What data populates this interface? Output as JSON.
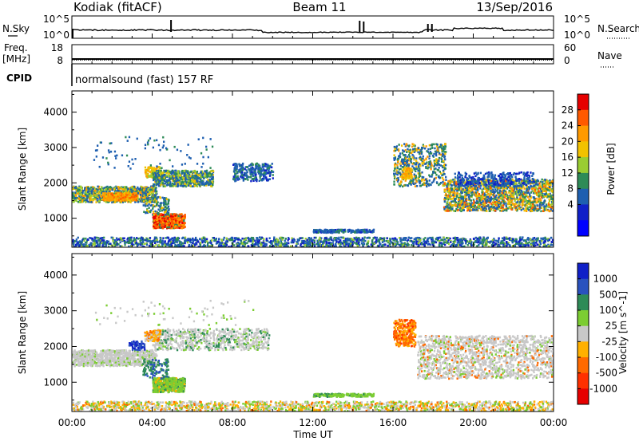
{
  "header": {
    "station": "Kodiak (fitACF)",
    "beam": "Beam 11",
    "date": "13/Sep/2016"
  },
  "summary_panels": {
    "nsky": {
      "left_label": "N.Sky",
      "left_ticks": [
        "10^5",
        "10^0"
      ],
      "right_label": "N.Search",
      "right_ticks": [
        "10^5",
        "10^0"
      ]
    },
    "freq": {
      "left_label_1": "Freq.",
      "left_label_2": "[MHz]",
      "left_ticks": [
        "18",
        "8"
      ],
      "right_label": "Nave",
      "right_ticks": [
        "60",
        "0"
      ]
    },
    "cpid": {
      "label": "CPID",
      "text": "normalsound (fast) 157 RF"
    }
  },
  "x_axis": {
    "label": "Time UT",
    "ticks": [
      "00:00",
      "04:00",
      "08:00",
      "12:00",
      "16:00",
      "20:00",
      "00:00"
    ]
  },
  "chart_data": [
    {
      "type": "heatmap",
      "title": "",
      "ylabel": "Slant Range [km]",
      "xlabel": "",
      "ylim": [
        180,
        4600
      ],
      "yticks": [
        1000,
        2000,
        3000,
        4000
      ],
      "colorbar": {
        "label": "Power [dB]",
        "ticks": [
          "28",
          "24",
          "20",
          "16",
          "12",
          "8",
          "4"
        ],
        "colors": [
          "#e60000",
          "#ff5a00",
          "#ff9a00",
          "#f2c200",
          "#9acd32",
          "#2e8b57",
          "#1e5fb0",
          "#1020c8",
          "#0000ff"
        ]
      },
      "regions": [
        {
          "t": [
            0.0,
            4.0
          ],
          "range": [
            1450,
            1900
          ],
          "level": "12-20"
        },
        {
          "t": [
            1.5,
            3.0
          ],
          "range": [
            1500,
            1700
          ],
          "level": "16-20"
        },
        {
          "t": [
            3.5,
            4.5
          ],
          "range": [
            2200,
            2400
          ],
          "level": "16-20"
        },
        {
          "t": [
            4.0,
            7.0
          ],
          "range": [
            1900,
            2300
          ],
          "level": "8-16"
        },
        {
          "t": [
            4.0,
            5.5
          ],
          "range": [
            750,
            1100
          ],
          "level": "20-28"
        },
        {
          "t": [
            8.0,
            10.0
          ],
          "range": [
            2100,
            2500
          ],
          "level": "8-12"
        },
        {
          "t": [
            0.0,
            24.0
          ],
          "range": [
            200,
            450
          ],
          "level": "4-8"
        },
        {
          "t": [
            12.0,
            15.0
          ],
          "range": [
            600,
            700
          ],
          "level": "4-8"
        },
        {
          "t": [
            16.0,
            18.5
          ],
          "range": [
            1900,
            3100
          ],
          "level": "8-20"
        },
        {
          "t": [
            18.5,
            24.0
          ],
          "range": [
            1300,
            2100
          ],
          "level": "8-24"
        }
      ]
    },
    {
      "type": "heatmap",
      "title": "",
      "ylabel": "Slant Range [km]",
      "xlabel": "",
      "ylim": [
        180,
        4600
      ],
      "yticks": [
        1000,
        2000,
        3000,
        4000
      ],
      "colorbar": {
        "label": "Velocity [m s^-1]",
        "ticks": [
          "1000",
          "500",
          "100",
          "25",
          "-25",
          "-100",
          "-500",
          "-1000"
        ],
        "colors": [
          "#1020c8",
          "#2a52be",
          "#2e8b57",
          "#7ccd32",
          "#c8c8c8",
          "#ffb000",
          "#ff6a00",
          "#ff3000",
          "#e60000"
        ]
      },
      "regions": [
        {
          "t": [
            0.0,
            10.0
          ],
          "range": [
            1500,
            2500
          ],
          "level": "-25 to 25"
        },
        {
          "t": [
            3.5,
            4.5
          ],
          "range": [
            2200,
            2450
          ],
          "level": "-100 to -25"
        },
        {
          "t": [
            4.0,
            5.5
          ],
          "range": [
            750,
            1100
          ],
          "level": "25 to 500"
        },
        {
          "t": [
            0.0,
            24.0
          ],
          "range": [
            200,
            450
          ],
          "level": "-100 to 100"
        },
        {
          "t": [
            12.0,
            15.0
          ],
          "range": [
            600,
            700
          ],
          "level": "25 to 100"
        },
        {
          "t": [
            16.0,
            17.0
          ],
          "range": [
            2000,
            2700
          ],
          "level": "-500 to -100"
        },
        {
          "t": [
            17.5,
            24.0
          ],
          "range": [
            1100,
            2200
          ],
          "level": "-25 to 25"
        }
      ]
    }
  ]
}
